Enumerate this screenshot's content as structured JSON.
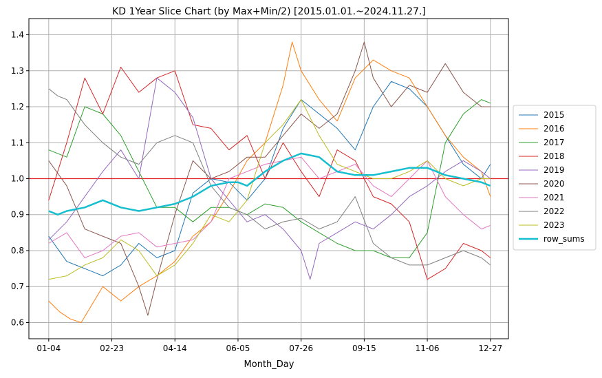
{
  "chart_data": {
    "type": "line",
    "title": "KD 1Year Slice Chart (by Max+Min/2) [2015.01.01.~2024.11.27.]",
    "xlabel": "Month_Day",
    "ylabel": "",
    "x_ticks": [
      "01-04",
      "02-23",
      "04-14",
      "06-05",
      "07-26",
      "09-15",
      "11-06",
      "12-27"
    ],
    "x_tick_index": [
      0,
      35,
      70,
      105,
      140,
      175,
      210,
      245
    ],
    "x_range": [
      -11,
      255
    ],
    "ylim": [
      0.555,
      1.445
    ],
    "y_ticks": [
      "0.6",
      "0.7",
      "0.8",
      "0.9",
      "1.0",
      "1.1",
      "1.2",
      "1.3",
      "1.4"
    ],
    "y_tick_values": [
      0.6,
      0.7,
      0.8,
      0.9,
      1.0,
      1.1,
      1.2,
      1.3,
      1.4
    ],
    "reference_line": {
      "y": 1.0,
      "color": "#e31a1c"
    },
    "grid": true,
    "legend_position": "right",
    "series": [
      {
        "name": "2015",
        "color": "#1f77b4",
        "width": 1,
        "x": [
          0,
          10,
          20,
          30,
          40,
          50,
          60,
          70,
          80,
          90,
          100,
          110,
          120,
          130,
          140,
          150,
          160,
          170,
          180,
          190,
          200,
          210,
          220,
          230,
          240,
          245
        ],
        "y": [
          0.84,
          0.77,
          0.75,
          0.73,
          0.76,
          0.82,
          0.78,
          0.8,
          0.96,
          1.0,
          0.99,
          0.94,
          1.0,
          1.14,
          1.22,
          1.18,
          1.14,
          1.08,
          1.2,
          1.27,
          1.25,
          1.2,
          1.12,
          1.04,
          1.0,
          1.04
        ]
      },
      {
        "name": "2016",
        "color": "#ff7f0e",
        "width": 1,
        "x": [
          0,
          6,
          12,
          18,
          24,
          30,
          40,
          50,
          60,
          70,
          80,
          90,
          100,
          110,
          120,
          130,
          135,
          140,
          150,
          160,
          170,
          180,
          190,
          200,
          210,
          220,
          230,
          240,
          245
        ],
        "y": [
          0.66,
          0.63,
          0.61,
          0.6,
          0.65,
          0.7,
          0.66,
          0.7,
          0.73,
          0.77,
          0.84,
          0.88,
          0.96,
          1.05,
          1.1,
          1.26,
          1.38,
          1.3,
          1.22,
          1.16,
          1.28,
          1.33,
          1.3,
          1.28,
          1.2,
          1.12,
          1.06,
          1.02,
          0.95
        ]
      },
      {
        "name": "2017",
        "color": "#2ca02c",
        "width": 1,
        "x": [
          0,
          10,
          20,
          30,
          40,
          50,
          60,
          70,
          80,
          90,
          100,
          110,
          120,
          130,
          140,
          150,
          160,
          170,
          180,
          190,
          200,
          210,
          220,
          230,
          240,
          245
        ],
        "y": [
          1.08,
          1.06,
          1.2,
          1.18,
          1.12,
          1.02,
          0.92,
          0.92,
          0.88,
          0.92,
          0.92,
          0.9,
          0.93,
          0.92,
          0.88,
          0.85,
          0.82,
          0.8,
          0.8,
          0.78,
          0.78,
          0.85,
          1.1,
          1.18,
          1.22,
          1.21
        ]
      },
      {
        "name": "2018",
        "color": "#d62728",
        "width": 1,
        "x": [
          0,
          10,
          20,
          30,
          40,
          50,
          60,
          70,
          80,
          90,
          100,
          110,
          120,
          130,
          140,
          150,
          160,
          170,
          180,
          190,
          200,
          210,
          220,
          230,
          240,
          245
        ],
        "y": [
          0.94,
          1.1,
          1.28,
          1.18,
          1.31,
          1.24,
          1.28,
          1.3,
          1.15,
          1.14,
          1.08,
          1.12,
          1.0,
          1.1,
          1.02,
          0.95,
          1.08,
          1.05,
          0.95,
          0.93,
          0.88,
          0.72,
          0.75,
          0.82,
          0.8,
          0.78
        ]
      },
      {
        "name": "2019",
        "color": "#9467bd",
        "width": 1,
        "x": [
          0,
          10,
          20,
          30,
          40,
          50,
          60,
          70,
          80,
          90,
          100,
          110,
          120,
          130,
          140,
          145,
          150,
          160,
          170,
          180,
          190,
          200,
          210,
          220,
          230,
          240,
          245
        ],
        "y": [
          0.83,
          0.88,
          0.95,
          1.02,
          1.08,
          1.0,
          1.28,
          1.24,
          1.17,
          1.0,
          0.94,
          0.88,
          0.9,
          0.86,
          0.8,
          0.72,
          0.82,
          0.85,
          0.88,
          0.86,
          0.9,
          0.95,
          0.98,
          1.02,
          1.05,
          1.02,
          1.0
        ]
      },
      {
        "name": "2020",
        "color": "#8c564b",
        "width": 1,
        "x": [
          0,
          10,
          20,
          30,
          40,
          50,
          55,
          60,
          70,
          80,
          90,
          100,
          110,
          120,
          130,
          140,
          150,
          160,
          170,
          175,
          180,
          190,
          200,
          210,
          220,
          230,
          240,
          245
        ],
        "y": [
          1.05,
          0.98,
          0.86,
          0.84,
          0.82,
          0.7,
          0.62,
          0.72,
          0.9,
          1.05,
          1.0,
          1.02,
          1.06,
          1.06,
          1.12,
          1.18,
          1.14,
          1.18,
          1.3,
          1.38,
          1.28,
          1.2,
          1.26,
          1.24,
          1.32,
          1.24,
          1.2,
          1.2
        ]
      },
      {
        "name": "2021",
        "color": "#e377c2",
        "width": 1,
        "x": [
          0,
          10,
          20,
          30,
          40,
          50,
          60,
          70,
          80,
          90,
          100,
          110,
          120,
          130,
          140,
          150,
          160,
          170,
          180,
          190,
          200,
          210,
          220,
          230,
          240,
          245
        ],
        "y": [
          0.82,
          0.85,
          0.78,
          0.8,
          0.84,
          0.85,
          0.81,
          0.82,
          0.83,
          0.88,
          1.0,
          1.02,
          1.04,
          1.05,
          1.06,
          1.0,
          1.02,
          1.04,
          0.98,
          0.95,
          1.0,
          1.05,
          0.95,
          0.9,
          0.86,
          0.87
        ]
      },
      {
        "name": "2022",
        "color": "#7f7f7f",
        "width": 1,
        "x": [
          0,
          5,
          10,
          20,
          30,
          40,
          50,
          60,
          70,
          80,
          90,
          100,
          110,
          120,
          130,
          140,
          150,
          160,
          170,
          180,
          190,
          200,
          210,
          220,
          230,
          240,
          245
        ],
        "y": [
          1.25,
          1.23,
          1.22,
          1.15,
          1.1,
          1.06,
          1.04,
          1.1,
          1.12,
          1.1,
          0.98,
          0.92,
          0.9,
          0.86,
          0.88,
          0.89,
          0.86,
          0.88,
          0.95,
          0.82,
          0.78,
          0.76,
          0.76,
          0.78,
          0.8,
          0.78,
          0.76
        ]
      },
      {
        "name": "2023",
        "color": "#bcbd22",
        "width": 1,
        "x": [
          0,
          10,
          20,
          30,
          40,
          50,
          60,
          70,
          80,
          90,
          100,
          110,
          120,
          130,
          140,
          150,
          160,
          170,
          180,
          190,
          200,
          210,
          220,
          230,
          240,
          245
        ],
        "y": [
          0.72,
          0.73,
          0.76,
          0.78,
          0.83,
          0.8,
          0.73,
          0.76,
          0.82,
          0.9,
          0.88,
          0.94,
          1.1,
          1.15,
          1.22,
          1.12,
          1.04,
          1.02,
          1.0,
          1.0,
          1.02,
          1.05,
          1.0,
          0.98,
          1.0,
          1.0
        ]
      },
      {
        "name": "row_sums",
        "color": "#17becf",
        "width": 2.5,
        "x": [
          0,
          5,
          10,
          20,
          30,
          40,
          50,
          60,
          70,
          80,
          90,
          100,
          105,
          110,
          120,
          130,
          140,
          150,
          160,
          170,
          180,
          190,
          200,
          210,
          220,
          230,
          240,
          245
        ],
        "y": [
          0.91,
          0.9,
          0.91,
          0.92,
          0.94,
          0.92,
          0.91,
          0.92,
          0.93,
          0.95,
          0.98,
          0.99,
          0.99,
          0.98,
          1.02,
          1.05,
          1.07,
          1.06,
          1.02,
          1.01,
          1.01,
          1.02,
          1.03,
          1.03,
          1.01,
          1.0,
          0.99,
          0.98
        ]
      }
    ]
  }
}
